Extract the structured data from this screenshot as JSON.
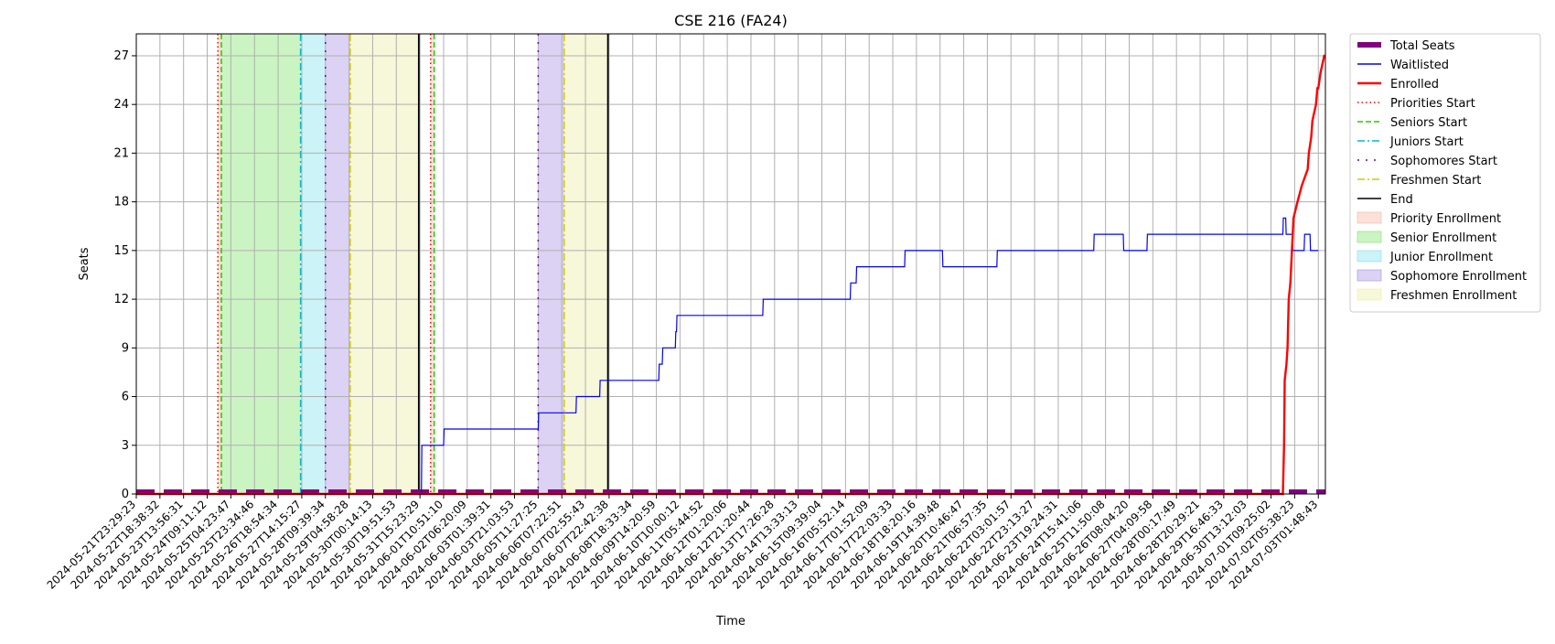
{
  "chart_data": {
    "type": "line",
    "title": "CSE 216 (FA24)",
    "xlabel": "Time",
    "ylabel": "Seats",
    "x_axis": {
      "type": "time",
      "range": [
        "2024-05-21T23:29:23",
        "2024-07-03T01:48:43"
      ],
      "tick_labels": [
        "2024-05-21T23:29:23",
        "2024-05-22T18:38:32",
        "2024-05-23T13:56:31",
        "2024-05-24T09:11:12",
        "2024-05-25T04:23:47",
        "2024-05-25T23:34:46",
        "2024-05-26T18:54:34",
        "2024-05-27T14:15:27",
        "2024-05-28T09:39:34",
        "2024-05-29T04:58:28",
        "2024-05-30T00:14:13",
        "2024-05-30T19:51:53",
        "2024-05-31T15:23:29",
        "2024-06-01T10:51:10",
        "2024-06-02T06:20:09",
        "2024-06-03T01:39:31",
        "2024-06-03T21:03:53",
        "2024-06-05T11:27:25",
        "2024-06-06T07:22:51",
        "2024-06-07T02:55:43",
        "2024-06-07T22:42:38",
        "2024-06-08T18:33:34",
        "2024-06-09T14:20:59",
        "2024-06-10T10:00:12",
        "2024-06-11T05:44:52",
        "2024-06-12T01:20:06",
        "2024-06-12T21:20:44",
        "2024-06-13T17:26:28",
        "2024-06-14T13:33:13",
        "2024-06-15T09:39:04",
        "2024-06-16T05:52:14",
        "2024-06-17T01:52:09",
        "2024-06-17T22:03:33",
        "2024-06-18T18:20:16",
        "2024-06-19T14:39:48",
        "2024-06-20T10:46:47",
        "2024-06-21T06:57:35",
        "2024-06-22T03:01:57",
        "2024-06-22T23:13:27",
        "2024-06-23T19:24:31",
        "2024-06-24T15:41:06",
        "2024-06-25T11:50:08",
        "2024-06-26T08:04:20",
        "2024-06-27T04:09:58",
        "2024-06-28T00:17:49",
        "2024-06-28T20:29:21",
        "2024-06-29T16:46:33",
        "2024-06-30T13:12:03",
        "2024-07-01T09:25:02",
        "2024-07-02T05:38:23",
        "2024-07-03T01:48:43"
      ]
    },
    "y_axis": {
      "range": [
        0,
        28.35
      ],
      "ticks": [
        0,
        3,
        6,
        9,
        12,
        15,
        18,
        21,
        24,
        27
      ]
    },
    "grid": true,
    "legend_position": "outside-right",
    "series": [
      {
        "name": "Total Seats",
        "color": "#800080",
        "style": "dashed-thick",
        "points": [
          [
            0,
            0
          ],
          [
            50,
            0
          ]
        ]
      },
      {
        "name": "Waitlisted",
        "color": "#0000ff",
        "style": "solid",
        "steps": [
          [
            0,
            0
          ],
          [
            12.06,
            0
          ],
          [
            12.08,
            3
          ],
          [
            13.0,
            3
          ],
          [
            13.02,
            4
          ],
          [
            17.0,
            4
          ],
          [
            17.02,
            5
          ],
          [
            18.6,
            5
          ],
          [
            18.62,
            6
          ],
          [
            19.6,
            6
          ],
          [
            19.62,
            7
          ],
          [
            22.1,
            7
          ],
          [
            22.12,
            8
          ],
          [
            22.25,
            8
          ],
          [
            22.27,
            9
          ],
          [
            22.8,
            9
          ],
          [
            22.82,
            10
          ],
          [
            22.85,
            10
          ],
          [
            22.87,
            11
          ],
          [
            26.5,
            11
          ],
          [
            26.52,
            12
          ],
          [
            30.2,
            12
          ],
          [
            30.22,
            13
          ],
          [
            30.45,
            13
          ],
          [
            30.47,
            14
          ],
          [
            32.5,
            14
          ],
          [
            32.52,
            15
          ],
          [
            34.1,
            15
          ],
          [
            34.12,
            14
          ],
          [
            36.4,
            14
          ],
          [
            36.42,
            15
          ],
          [
            40.5,
            15
          ],
          [
            40.52,
            16
          ],
          [
            41.75,
            16
          ],
          [
            41.77,
            15
          ],
          [
            42.75,
            15
          ],
          [
            42.77,
            16
          ],
          [
            48.5,
            16
          ],
          [
            48.52,
            17
          ],
          [
            48.62,
            17
          ],
          [
            48.64,
            16
          ],
          [
            48.9,
            16
          ],
          [
            48.92,
            15
          ],
          [
            49.4,
            15
          ],
          [
            49.42,
            16
          ],
          [
            49.65,
            16
          ],
          [
            49.67,
            15
          ],
          [
            50,
            15
          ]
        ]
      },
      {
        "name": "Enrolled",
        "color": "#ff0000",
        "style": "solid-thick",
        "steps": [
          [
            0,
            0
          ],
          [
            48.5,
            0
          ],
          [
            48.55,
            3
          ],
          [
            48.58,
            7
          ],
          [
            48.65,
            8
          ],
          [
            48.7,
            9
          ],
          [
            48.75,
            12
          ],
          [
            48.82,
            13
          ],
          [
            48.95,
            17
          ],
          [
            49.12,
            18
          ],
          [
            49.3,
            19
          ],
          [
            49.55,
            20
          ],
          [
            49.6,
            21
          ],
          [
            49.7,
            22
          ],
          [
            49.75,
            23
          ],
          [
            49.9,
            24
          ],
          [
            49.96,
            25
          ],
          [
            50.0,
            25
          ],
          [
            50.1,
            26
          ],
          [
            50.25,
            27
          ],
          [
            50.3,
            27
          ]
        ]
      }
    ],
    "vertical_markers": [
      {
        "name": "Priorities Start",
        "color": "#ff0000",
        "style": "dotted",
        "x": [
          3.45,
          12.45
        ]
      },
      {
        "name": "Seniors Start",
        "color": "#22cc00",
        "style": "dashed",
        "x": [
          3.6,
          12.6
        ]
      },
      {
        "name": "Juniors Start",
        "color": "#00bbcc",
        "style": "dashdot",
        "x": [
          6.95
        ]
      },
      {
        "name": "Sophomores Start",
        "color": "#6600cc",
        "style": "loosely-dotted",
        "x": [
          8.0,
          17.0
        ]
      },
      {
        "name": "Freshmen Start",
        "color": "#d4c800",
        "style": "dashdot",
        "x": [
          9.05,
          18.1
        ]
      },
      {
        "name": "End",
        "color": "#000000",
        "style": "solid",
        "x": [
          11.95,
          19.95
        ]
      }
    ],
    "shaded_regions": [
      {
        "name": "Priority Enrollment",
        "color": "#f4b5a0",
        "spans": [
          [
            3.45,
            3.6
          ],
          [
            12.45,
            12.6
          ]
        ]
      },
      {
        "name": "Senior Enrollment",
        "color": "#7de36a",
        "spans": [
          [
            3.6,
            6.95
          ]
        ]
      },
      {
        "name": "Junior Enrollment",
        "color": "#7fe0ea",
        "spans": [
          [
            6.95,
            8.0
          ]
        ]
      },
      {
        "name": "Sophomore Enrollment",
        "color": "#a58ee3",
        "spans": [
          [
            8.0,
            9.05
          ],
          [
            17.0,
            18.1
          ]
        ]
      },
      {
        "name": "Freshmen Enrollment",
        "color": "#ececa0",
        "spans": [
          [
            9.05,
            11.95
          ],
          [
            18.1,
            19.95
          ]
        ]
      }
    ]
  }
}
